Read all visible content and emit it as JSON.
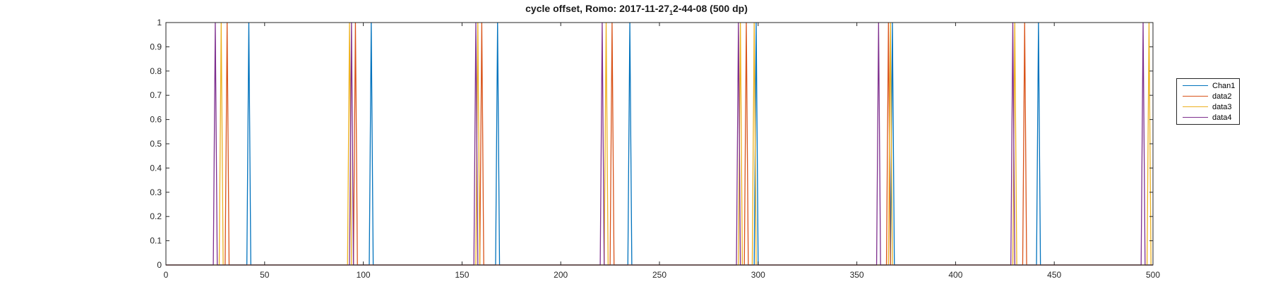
{
  "chart_data": {
    "type": "line",
    "title_main": "cycle offset, Romo: 2017-11-27",
    "title_sub": "1",
    "title_tail": "2-44-08 (500 dp)",
    "xlabel": "",
    "ylabel": "",
    "xlim": [
      0,
      500
    ],
    "ylim": [
      0,
      1
    ],
    "x_ticks": [
      0,
      50,
      100,
      150,
      200,
      250,
      300,
      350,
      400,
      450,
      500
    ],
    "y_ticks": [
      0,
      0.1,
      0.2,
      0.3,
      0.4,
      0.5,
      0.6,
      0.7,
      0.8,
      0.9,
      1
    ],
    "grid": false,
    "legend_position": "right-outside",
    "series": [
      {
        "name": "Chan1",
        "color": "#0072BD",
        "pulse_x": [
          42,
          104,
          168,
          235,
          299,
          368,
          442
        ]
      },
      {
        "name": "data2",
        "color": "#D95319",
        "pulse_x": [
          31,
          96,
          160,
          226,
          294,
          366,
          435
        ]
      },
      {
        "name": "data3",
        "color": "#EDB120",
        "pulse_x": [
          28,
          93,
          158,
          223,
          291,
          298,
          367,
          430,
          498
        ]
      },
      {
        "name": "data4",
        "color": "#7E2F8E",
        "pulse_x": [
          25,
          94,
          157,
          221,
          290,
          361,
          429,
          495
        ]
      }
    ]
  }
}
